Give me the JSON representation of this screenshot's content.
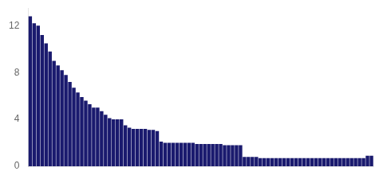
{
  "chart_data": {
    "type": "bar",
    "color": "#1a1a6e",
    "grid": false,
    "tick_labels": "y",
    "ylim": [
      0,
      13.5
    ],
    "yticks": [
      0,
      4,
      8,
      12
    ],
    "values": [
      12.8,
      12.2,
      12.0,
      11.2,
      10.5,
      9.8,
      9.0,
      8.6,
      8.2,
      7.8,
      7.2,
      6.7,
      6.3,
      5.9,
      5.6,
      5.3,
      5.0,
      5.0,
      4.7,
      4.4,
      4.1,
      4.0,
      4.0,
      4.0,
      3.5,
      3.3,
      3.2,
      3.2,
      3.2,
      3.2,
      3.1,
      3.1,
      3.0,
      2.1,
      2.0,
      2.0,
      2.0,
      2.0,
      2.0,
      2.0,
      2.0,
      2.0,
      1.9,
      1.9,
      1.9,
      1.9,
      1.9,
      1.9,
      1.9,
      1.8,
      1.8,
      1.8,
      1.8,
      1.8,
      0.8,
      0.8,
      0.8,
      0.8,
      0.7,
      0.7,
      0.7,
      0.7,
      0.7,
      0.7,
      0.7,
      0.7,
      0.7,
      0.7,
      0.7,
      0.7,
      0.7,
      0.7,
      0.7,
      0.7,
      0.7,
      0.7,
      0.7,
      0.7,
      0.7,
      0.7,
      0.7,
      0.7,
      0.7,
      0.7,
      0.7,
      0.9,
      0.9
    ]
  }
}
